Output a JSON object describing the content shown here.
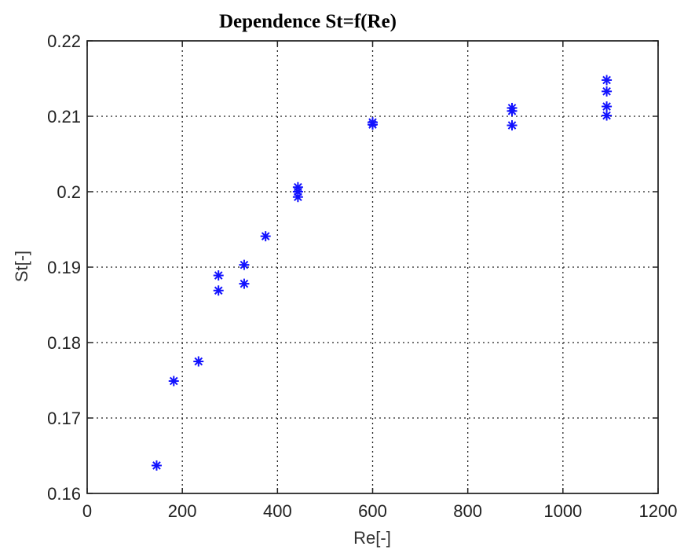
{
  "chart_data": {
    "type": "scatter",
    "title": "Dependence St=f(Re)",
    "xlabel": "Re[-]",
    "ylabel": "St[-]",
    "xlim": [
      0,
      1200
    ],
    "ylim": [
      0.16,
      0.22
    ],
    "xticks": [
      0,
      200,
      400,
      600,
      800,
      1000,
      1200
    ],
    "yticks": [
      0.16,
      0.17,
      0.18,
      0.19,
      0.2,
      0.21,
      0.22
    ],
    "xtick_labels": [
      "0",
      "200",
      "400",
      "600",
      "800",
      "1000",
      "1200"
    ],
    "ytick_labels": [
      "0.16",
      "0.17",
      "0.18",
      "0.19",
      "0.2",
      "0.21",
      "0.22"
    ],
    "grid": true,
    "marker": "star",
    "color": "#1212ff",
    "points": [
      {
        "x": 146,
        "y": 0.1637
      },
      {
        "x": 182,
        "y": 0.1749
      },
      {
        "x": 234,
        "y": 0.1775
      },
      {
        "x": 276,
        "y": 0.1889
      },
      {
        "x": 276,
        "y": 0.1869
      },
      {
        "x": 330,
        "y": 0.1903
      },
      {
        "x": 330,
        "y": 0.1878
      },
      {
        "x": 375,
        "y": 0.1941
      },
      {
        "x": 443,
        "y": 0.2006
      },
      {
        "x": 443,
        "y": 0.2
      },
      {
        "x": 443,
        "y": 0.1993
      },
      {
        "x": 600,
        "y": 0.2092
      },
      {
        "x": 600,
        "y": 0.2089
      },
      {
        "x": 893,
        "y": 0.2111
      },
      {
        "x": 893,
        "y": 0.2107
      },
      {
        "x": 893,
        "y": 0.2088
      },
      {
        "x": 1092,
        "y": 0.2148
      },
      {
        "x": 1092,
        "y": 0.2133
      },
      {
        "x": 1092,
        "y": 0.2113
      },
      {
        "x": 1092,
        "y": 0.2101
      }
    ]
  }
}
